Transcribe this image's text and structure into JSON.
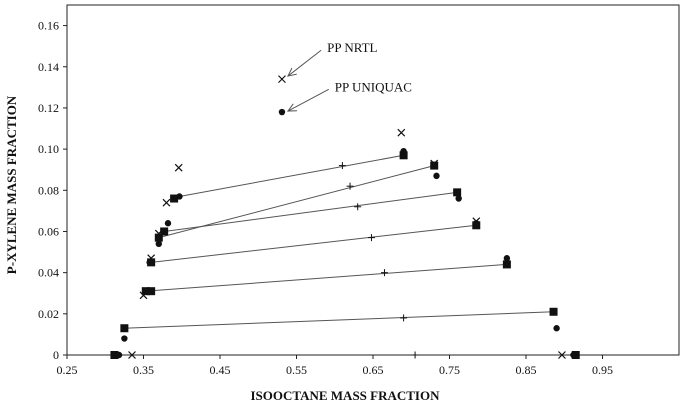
{
  "chart_data": {
    "type": "scatter",
    "title": "",
    "xlabel": "ISOOCTANE MASS FRACTION",
    "ylabel": "P-XYLENE MASS FRACTION",
    "xlim": [
      0.25,
      1.05
    ],
    "ylim": [
      0,
      0.17
    ],
    "grid": false,
    "x_ticks": [
      "0.25",
      "0.35",
      "0.45",
      "0.55",
      "0.65",
      "0.75",
      "0.85",
      "0.95"
    ],
    "x_tick_values": [
      0.25,
      0.35,
      0.45,
      0.55,
      0.65,
      0.75,
      0.85,
      0.95
    ],
    "y_ticks": [
      "0",
      "0.02",
      "0.04",
      "0.06",
      "0.08",
      "0.10",
      "0.12",
      "0.14",
      "0.16"
    ],
    "y_tick_values": [
      0,
      0.02,
      0.04,
      0.06,
      0.08,
      0.1,
      0.12,
      0.14,
      0.16
    ],
    "annotations": [
      {
        "text": "PP NRTL",
        "text_at": [
          0.59,
          0.149
        ],
        "arrow_to": [
          0.531,
          0.135
        ]
      },
      {
        "text": "PP UNIQUAC",
        "text_at": [
          0.6,
          0.13
        ],
        "arrow_to": [
          0.531,
          0.118
        ]
      }
    ],
    "series": [
      {
        "marker": "square",
        "points": [
          [
            0.312,
            0
          ],
          [
            0.325,
            0.013
          ],
          [
            0.353,
            0.031
          ],
          [
            0.36,
            0.031
          ],
          [
            0.36,
            0.045
          ],
          [
            0.37,
            0.057
          ],
          [
            0.377,
            0.06
          ],
          [
            0.39,
            0.076
          ],
          [
            0.69,
            0.097
          ],
          [
            0.73,
            0.092
          ],
          [
            0.76,
            0.079
          ],
          [
            0.785,
            0.063
          ],
          [
            0.825,
            0.044
          ],
          [
            0.886,
            0.021
          ],
          [
            0.915,
            0
          ]
        ]
      },
      {
        "marker": "circle",
        "points": [
          [
            0.318,
            0
          ],
          [
            0.325,
            0.008
          ],
          [
            0.358,
            0.045
          ],
          [
            0.37,
            0.054
          ],
          [
            0.382,
            0.064
          ],
          [
            0.397,
            0.077
          ],
          [
            0.531,
            0.118
          ],
          [
            0.69,
            0.099
          ],
          [
            0.733,
            0.087
          ],
          [
            0.762,
            0.076
          ],
          [
            0.785,
            0.064
          ],
          [
            0.825,
            0.047
          ],
          [
            0.89,
            0.013
          ],
          [
            0.912,
            0
          ]
        ]
      },
      {
        "marker": "x",
        "points": [
          [
            0.335,
            0
          ],
          [
            0.35,
            0.029
          ],
          [
            0.36,
            0.047
          ],
          [
            0.37,
            0.059
          ],
          [
            0.38,
            0.074
          ],
          [
            0.396,
            0.091
          ],
          [
            0.531,
            0.134
          ],
          [
            0.687,
            0.108
          ],
          [
            0.73,
            0.093
          ],
          [
            0.785,
            0.065
          ],
          [
            0.897,
            0
          ]
        ]
      },
      {
        "marker": "plus",
        "points": [
          [
            0.61,
            0.092
          ],
          [
            0.62,
            0.082
          ],
          [
            0.63,
            0.072
          ],
          [
            0.648,
            0.057
          ],
          [
            0.665,
            0.04
          ],
          [
            0.69,
            0.018
          ],
          [
            0.705,
            0
          ]
        ]
      }
    ],
    "tie_lines": [
      [
        [
          0.325,
          0.013
        ],
        [
          0.886,
          0.021
        ]
      ],
      [
        [
          0.353,
          0.031
        ],
        [
          0.825,
          0.044
        ]
      ],
      [
        [
          0.36,
          0.045
        ],
        [
          0.785,
          0.063
        ]
      ],
      [
        [
          0.377,
          0.06
        ],
        [
          0.76,
          0.079
        ]
      ],
      [
        [
          0.37,
          0.057
        ],
        [
          0.73,
          0.092
        ]
      ],
      [
        [
          0.397,
          0.077
        ],
        [
          0.69,
          0.097
        ]
      ]
    ]
  }
}
